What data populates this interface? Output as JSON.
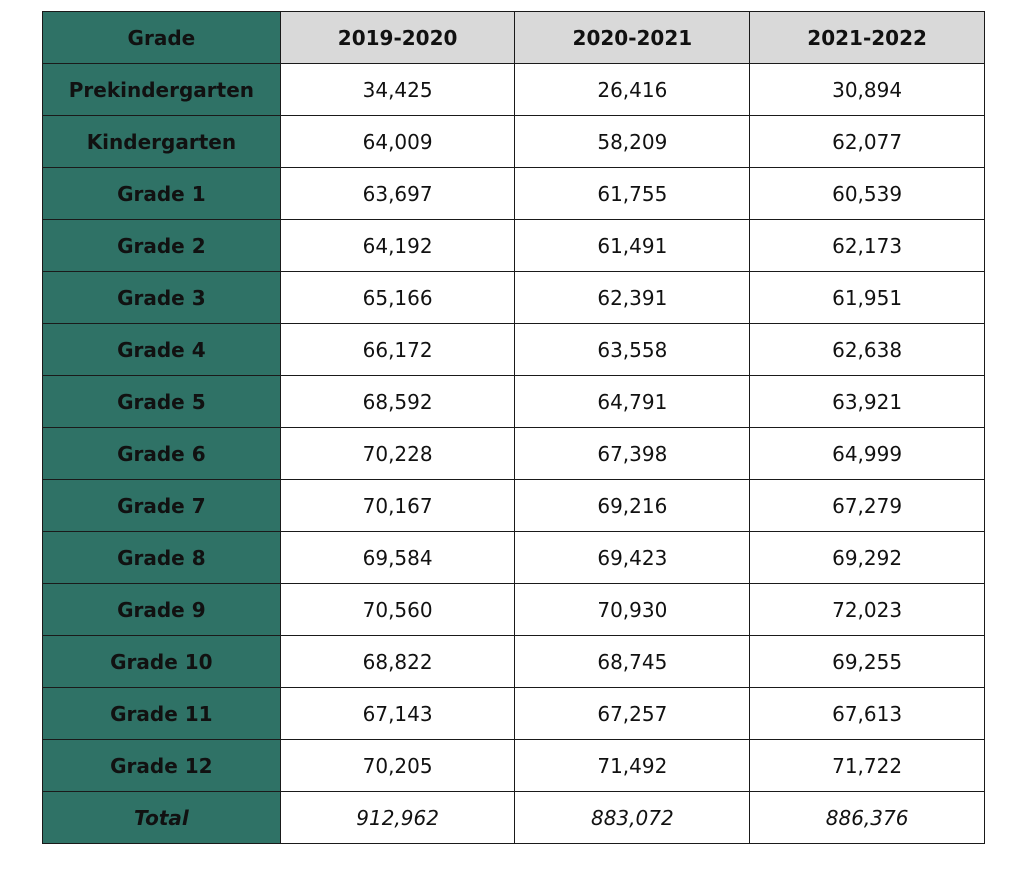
{
  "table": {
    "header": {
      "grade_label": "Grade",
      "years": [
        "2019-2020",
        "2020-2021",
        "2021-2022"
      ]
    },
    "rows": [
      {
        "label": "Prekindergarten",
        "values": [
          "34,425",
          "26,416",
          "30,894"
        ]
      },
      {
        "label": "Kindergarten",
        "values": [
          "64,009",
          "58,209",
          "62,077"
        ]
      },
      {
        "label": "Grade 1",
        "values": [
          "63,697",
          "61,755",
          "60,539"
        ]
      },
      {
        "label": "Grade 2",
        "values": [
          "64,192",
          "61,491",
          "62,173"
        ]
      },
      {
        "label": "Grade 3",
        "values": [
          "65,166",
          "62,391",
          "61,951"
        ]
      },
      {
        "label": "Grade 4",
        "values": [
          "66,172",
          "63,558",
          "62,638"
        ]
      },
      {
        "label": "Grade 5",
        "values": [
          "68,592",
          "64,791",
          "63,921"
        ]
      },
      {
        "label": "Grade 6",
        "values": [
          "70,228",
          "67,398",
          "64,999"
        ]
      },
      {
        "label": "Grade 7",
        "values": [
          "70,167",
          "69,216",
          "67,279"
        ]
      },
      {
        "label": "Grade 8",
        "values": [
          "69,584",
          "69,423",
          "69,292"
        ]
      },
      {
        "label": "Grade 9",
        "values": [
          "70,560",
          "70,930",
          "72,023"
        ]
      },
      {
        "label": "Grade 10",
        "values": [
          "68,822",
          "68,745",
          "69,255"
        ]
      },
      {
        "label": "Grade 11",
        "values": [
          "67,143",
          "67,257",
          "67,613"
        ]
      },
      {
        "label": "Grade 12",
        "values": [
          "70,205",
          "71,492",
          "71,722"
        ]
      }
    ],
    "total": {
      "label": "Total",
      "values": [
        "912,962",
        "883,072",
        "886,376"
      ]
    }
  },
  "colors": {
    "label_bg": "#2f7266",
    "header_bg": "#d9d9d9",
    "border": "#1a1a1a"
  }
}
